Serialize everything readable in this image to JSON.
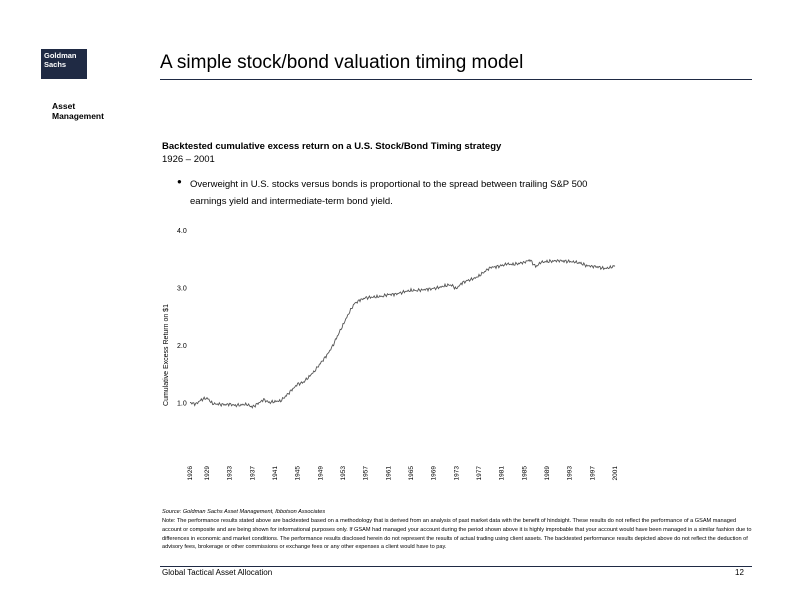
{
  "logo": {
    "line1": "Goldman",
    "line2": "Sachs"
  },
  "division": {
    "line1": "Asset",
    "line2": "Management"
  },
  "slide_title": "A simple stock/bond valuation timing model",
  "subhead": "Backtested cumulative excess return on a U.S. Stock/Bond Timing strategy",
  "period": "1926 – 2001",
  "bullet": "Overweight in U.S. stocks versus bonds is proportional to the spread between trailing S&P 500 earnings yield and intermediate-term bond yield.",
  "source": "Source:  Goldman Sachs Asset Management, Ibbotson Associates",
  "note": "Note: The performance results stated above are backtested based on a methodology that is derived from an analysis of past market data with the benefit of hindsight.  These results do not reflect the performance of a GSAM managed account or composite and are being shown for informational purposes only.  If GSAM had managed your account during the period shown above it is highly improbable that your account would have been managed in a similar fashion due to differences in economic and market conditions.  The performance results disclosed herein do not represent the results of actual trading using client assets.  The backtested performance results depicted above do not reflect the deduction of advisory fees, brokerage or other commissions or exchange fees or any other expenses a client would have to pay.",
  "footer": {
    "left": "Global Tactical Asset Allocation",
    "page": "12"
  },
  "colors": {
    "navy": "#1f2a44",
    "line": "#555555"
  },
  "chart_data": {
    "type": "line",
    "title": "",
    "xlabel": "",
    "ylabel": "Cumulative Excess Return on $1",
    "ylim": [
      0.0,
      4.0
    ],
    "xlim": [
      1926,
      2001
    ],
    "yticks": [
      1.0,
      2.0,
      3.0,
      4.0
    ],
    "ytick_labels": [
      "1.0",
      "2.0",
      "3.0",
      "4.0"
    ],
    "xtick_labels": [
      "1926",
      "1929",
      "1933",
      "1937",
      "1941",
      "1945",
      "1949",
      "1953",
      "1957",
      "1961",
      "1965",
      "1969",
      "1973",
      "1977",
      "1981",
      "1985",
      "1989",
      "1993",
      "1997",
      "2001"
    ],
    "grid": false,
    "series": [
      {
        "x": [
          1926,
          1927,
          1928,
          1929,
          1930,
          1931,
          1932,
          1933,
          1934,
          1935,
          1936,
          1937,
          1938,
          1939,
          1940,
          1941,
          1942,
          1943,
          1944,
          1945,
          1946,
          1947,
          1948,
          1949,
          1950,
          1951,
          1952,
          1953,
          1954,
          1955,
          1956,
          1957,
          1958,
          1959,
          1960,
          1961,
          1962,
          1963,
          1964,
          1965,
          1966,
          1967,
          1968,
          1969,
          1970,
          1971,
          1972,
          1973,
          1974,
          1975,
          1976,
          1977,
          1978,
          1979,
          1980,
          1981,
          1982,
          1983,
          1984,
          1985,
          1986,
          1987,
          1988,
          1989,
          1990,
          1991,
          1992,
          1993,
          1994,
          1995,
          1996,
          1997,
          1998,
          1999,
          2000,
          2001
        ],
        "y": [
          1.0,
          0.97,
          1.05,
          1.08,
          0.98,
          0.97,
          0.96,
          0.97,
          0.95,
          0.96,
          0.97,
          0.92,
          0.98,
          1.05,
          1.0,
          1.02,
          1.03,
          1.12,
          1.22,
          1.32,
          1.35,
          1.45,
          1.55,
          1.68,
          1.8,
          1.95,
          2.15,
          2.35,
          2.55,
          2.72,
          2.78,
          2.82,
          2.83,
          2.84,
          2.85,
          2.88,
          2.88,
          2.9,
          2.93,
          2.95,
          2.95,
          2.96,
          2.97,
          2.98,
          3.0,
          3.03,
          3.05,
          2.98,
          3.08,
          3.12,
          3.15,
          3.2,
          3.28,
          3.35,
          3.36,
          3.38,
          3.41,
          3.4,
          3.42,
          3.44,
          3.48,
          3.36,
          3.44,
          3.45,
          3.46,
          3.47,
          3.46,
          3.45,
          3.44,
          3.42,
          3.38,
          3.37,
          3.36,
          3.33,
          3.34,
          3.38
        ]
      }
    ]
  }
}
